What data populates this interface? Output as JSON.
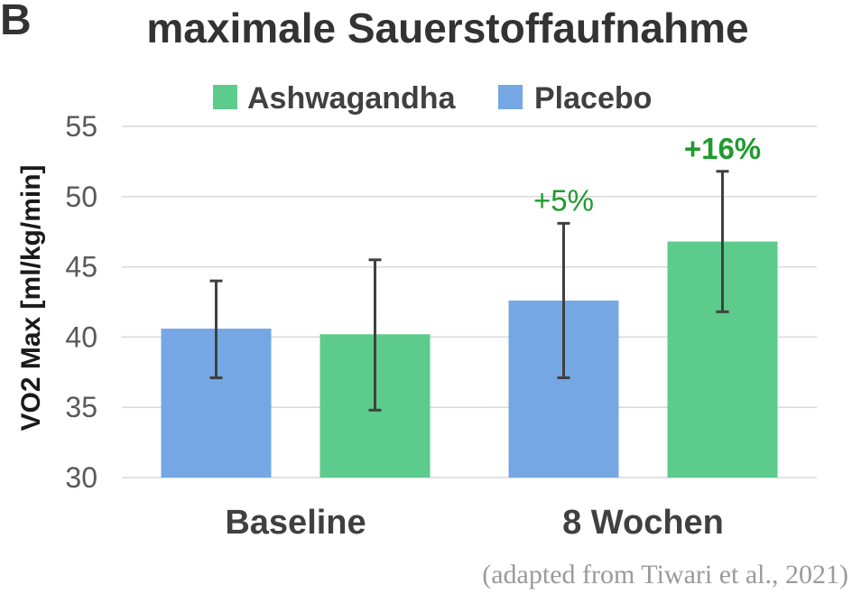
{
  "panel_label": "B",
  "title": "maximale Sauerstoffaufnahme",
  "source_note": "(adapted from Tiwari et al., 2021)",
  "colors": {
    "Ashwagandha": "#5ccb8b",
    "Placebo": "#75a7e4",
    "annotation": "#1f9b2e"
  },
  "chart_data": {
    "type": "bar",
    "title": "maximale Sauerstoffaufnahme",
    "xlabel": "",
    "ylabel": "VO2 Max [ml/kg/min]",
    "ylim": [
      30,
      55
    ],
    "yticks": [
      30,
      35,
      40,
      45,
      50,
      55
    ],
    "grid": true,
    "legend_position": "top",
    "legend": [
      "Ashwagandha",
      "Placebo"
    ],
    "categories": [
      "Baseline",
      "8 Wochen"
    ],
    "bars": [
      {
        "category": "Baseline",
        "series": "Placebo",
        "value": 40.6,
        "error_low": 37.1,
        "error_high": 44.0,
        "label": ""
      },
      {
        "category": "Baseline",
        "series": "Ashwagandha",
        "value": 40.2,
        "error_low": 34.8,
        "error_high": 45.5,
        "label": ""
      },
      {
        "category": "8 Wochen",
        "series": "Placebo",
        "value": 42.6,
        "error_low": 37.1,
        "error_high": 48.1,
        "label": "+5%"
      },
      {
        "category": "8 Wochen",
        "series": "Ashwagandha",
        "value": 46.8,
        "error_low": 41.8,
        "error_high": 51.8,
        "label": "+16%"
      }
    ]
  }
}
